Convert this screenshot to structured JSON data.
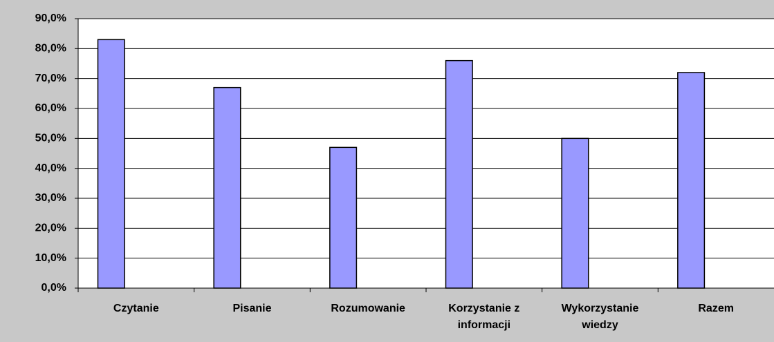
{
  "chart_data": {
    "type": "bar",
    "categories": [
      "Czytanie",
      "Pisanie",
      "Rozumowanie",
      "Korzystanie z informacji",
      "Wykorzystanie wiedzy",
      "Razem"
    ],
    "values": [
      83,
      67,
      47,
      76,
      50,
      72
    ],
    "color": "#9999ff",
    "ylim": [
      0,
      90
    ],
    "yticks": [
      {
        "value": 0,
        "label": "0,0%"
      },
      {
        "value": 10,
        "label": "10,0%"
      },
      {
        "value": 20,
        "label": "20,0%"
      },
      {
        "value": 30,
        "label": "30,0%"
      },
      {
        "value": 40,
        "label": "40,0%"
      },
      {
        "value": 50,
        "label": "50,0%"
      },
      {
        "value": 60,
        "label": "60,0%"
      },
      {
        "value": 70,
        "label": "70,0%"
      },
      {
        "value": 80,
        "label": "80,0%"
      },
      {
        "value": 90,
        "label": "90,0%"
      }
    ],
    "grid": true
  }
}
